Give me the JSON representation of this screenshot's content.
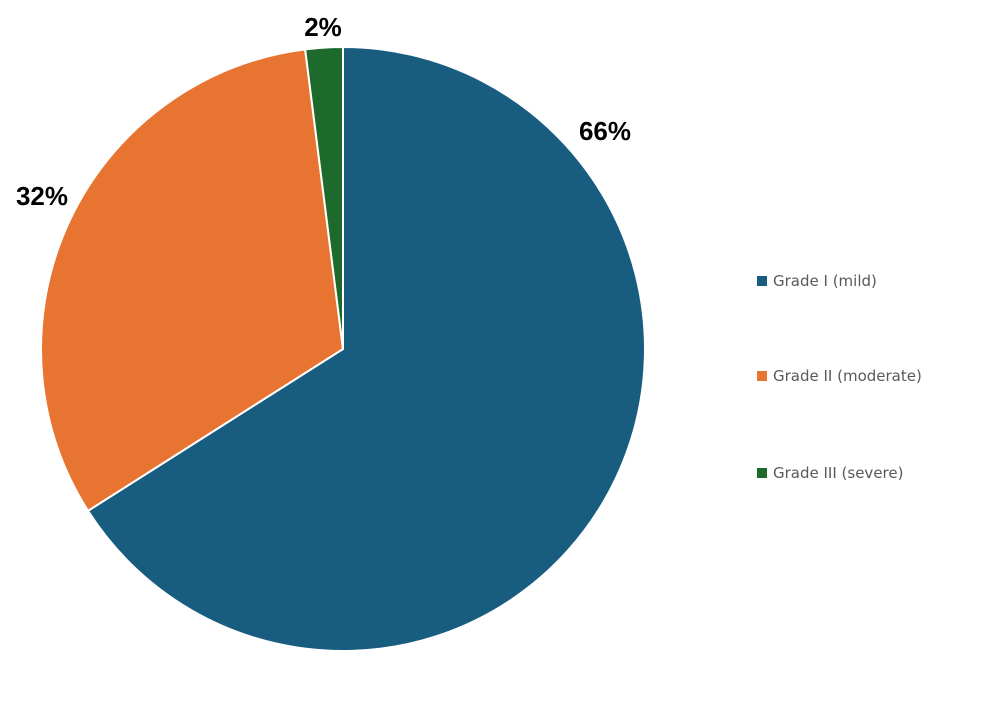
{
  "chart_data": {
    "type": "pie",
    "slices": [
      {
        "label": "Grade I (mild)",
        "value": 66,
        "display": "66%",
        "color": "#185C7F"
      },
      {
        "label": "Grade II (moderate)",
        "value": 32,
        "display": "32%",
        "color": "#E87432"
      },
      {
        "label": "Grade III (severe)",
        "value": 2,
        "display": "2%",
        "color": "#1E6A2D"
      }
    ],
    "start_angle_deg": 0,
    "direction": "clockwise",
    "legend_position": "right"
  }
}
